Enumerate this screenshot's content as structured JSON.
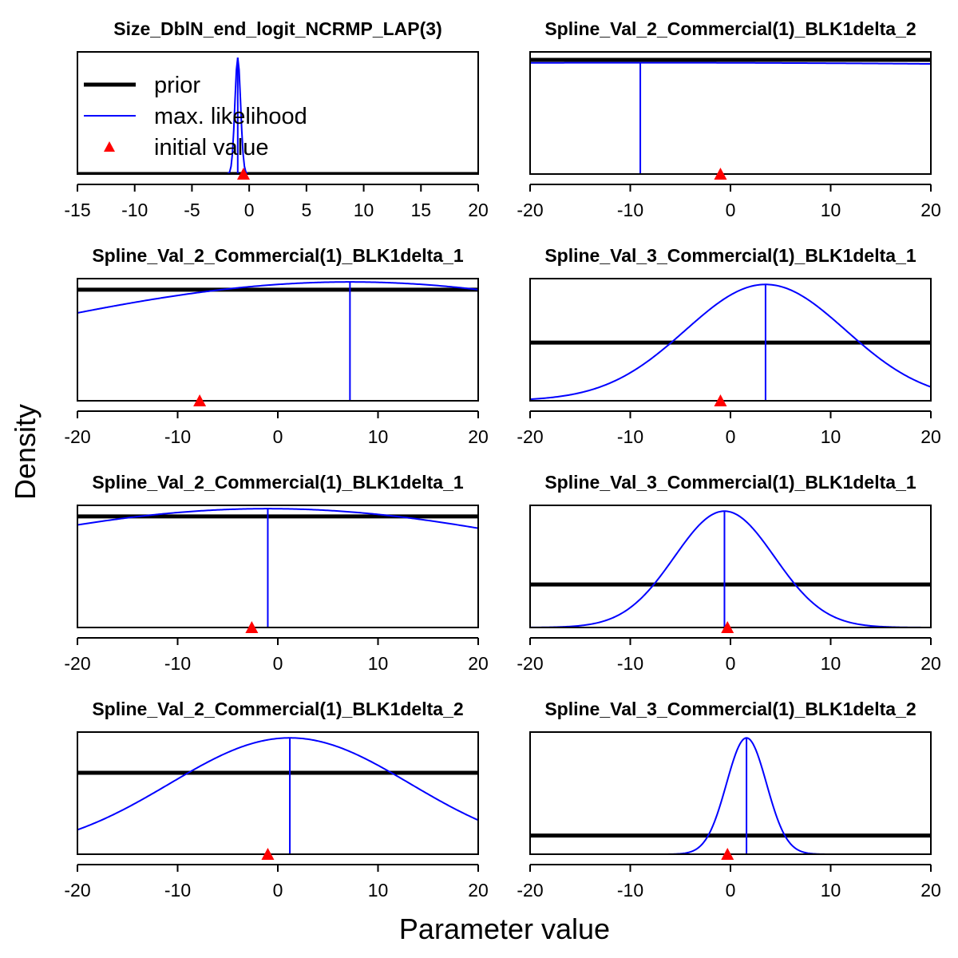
{
  "figure": {
    "xlabel": "Parameter value",
    "ylabel": "Density"
  },
  "legend": {
    "entries": [
      {
        "label": "prior",
        "kind": "line",
        "color": "#000000"
      },
      {
        "label": "max. likelihood",
        "kind": "line",
        "color": "#0000ff"
      },
      {
        "label": "initial value",
        "kind": "triangle",
        "color": "#ff0000"
      }
    ]
  },
  "colors": {
    "prior": "#000000",
    "mle": "#0000ff",
    "initial": "#ff0000"
  },
  "chart_data": [
    {
      "type": "line",
      "title": "Size_DblN_end_logit_NCRMP_LAP(3)",
      "xlim": [
        -15,
        20
      ],
      "xticks": [
        -15,
        -10,
        -5,
        0,
        5,
        10,
        15,
        20
      ],
      "prior_level": 0.0,
      "mle": -1.0,
      "mle_sd": 0.25,
      "mle_peak": 1.0,
      "initial": -0.5,
      "ylim_top": 1.05,
      "has_legend": true
    },
    {
      "type": "line",
      "title": "Spline_Val_2_Commercial(1)_BLK1delta_2",
      "xlim": [
        -20,
        20
      ],
      "xticks": [
        -20,
        -10,
        0,
        10,
        20
      ],
      "prior_level": 1.0,
      "mle": -9.0,
      "mle_sd": 200,
      "mle_peak": 0.975,
      "initial": -1.0,
      "ylim_top": 1.07,
      "has_legend": false
    },
    {
      "type": "line",
      "title": "Spline_Val_2_Commercial(1)_BLK1delta_1",
      "xlim": [
        -20,
        20
      ],
      "xticks": [
        -20,
        -10,
        0,
        10,
        20
      ],
      "prior_level": 1.0,
      "mle": 7.2,
      "mle_sd": 35,
      "mle_peak": 1.07,
      "initial": -7.8,
      "ylim_top": 1.1,
      "has_legend": false
    },
    {
      "type": "line",
      "title": "Spline_Val_3_Commercial(1)_BLK1delta_1",
      "xlim": [
        -20,
        20
      ],
      "xticks": [
        -20,
        -10,
        0,
        10,
        20
      ],
      "prior_level": 0.5,
      "mle": 3.5,
      "mle_sd": 8.0,
      "mle_peak": 1.0,
      "initial": -1.0,
      "ylim_top": 1.05,
      "has_legend": false
    },
    {
      "type": "line",
      "title": "Spline_Val_2_Commercial(1)_BLK1delta_1",
      "xlim": [
        -20,
        20
      ],
      "xticks": [
        -20,
        -10,
        0,
        10,
        20
      ],
      "prior_level": 1.0,
      "mle": -1.0,
      "mle_sd": 35,
      "mle_peak": 1.07,
      "initial": -2.6,
      "ylim_top": 1.1,
      "has_legend": false
    },
    {
      "type": "line",
      "title": "Spline_Val_3_Commercial(1)_BLK1delta_1",
      "xlim": [
        -20,
        20
      ],
      "xticks": [
        -20,
        -10,
        0,
        10,
        20
      ],
      "prior_level": 0.37,
      "mle": -0.6,
      "mle_sd": 5.0,
      "mle_peak": 1.0,
      "initial": -0.3,
      "ylim_top": 1.05,
      "has_legend": false
    },
    {
      "type": "line",
      "title": "Spline_Val_2_Commercial(1)_BLK1delta_2",
      "xlim": [
        -20,
        20
      ],
      "xticks": [
        -20,
        -10,
        0,
        10,
        20
      ],
      "prior_level": 0.7,
      "mle": 1.2,
      "mle_sd": 12.0,
      "mle_peak": 1.0,
      "initial": -1.0,
      "ylim_top": 1.05,
      "has_legend": false
    },
    {
      "type": "line",
      "title": "Spline_Val_3_Commercial(1)_BLK1delta_2",
      "xlim": [
        -20,
        20
      ],
      "xticks": [
        -20,
        -10,
        0,
        10,
        20
      ],
      "prior_level": 0.16,
      "mle": 1.6,
      "mle_sd": 2.0,
      "mle_peak": 1.0,
      "initial": -0.3,
      "ylim_top": 1.05,
      "has_legend": false
    }
  ]
}
